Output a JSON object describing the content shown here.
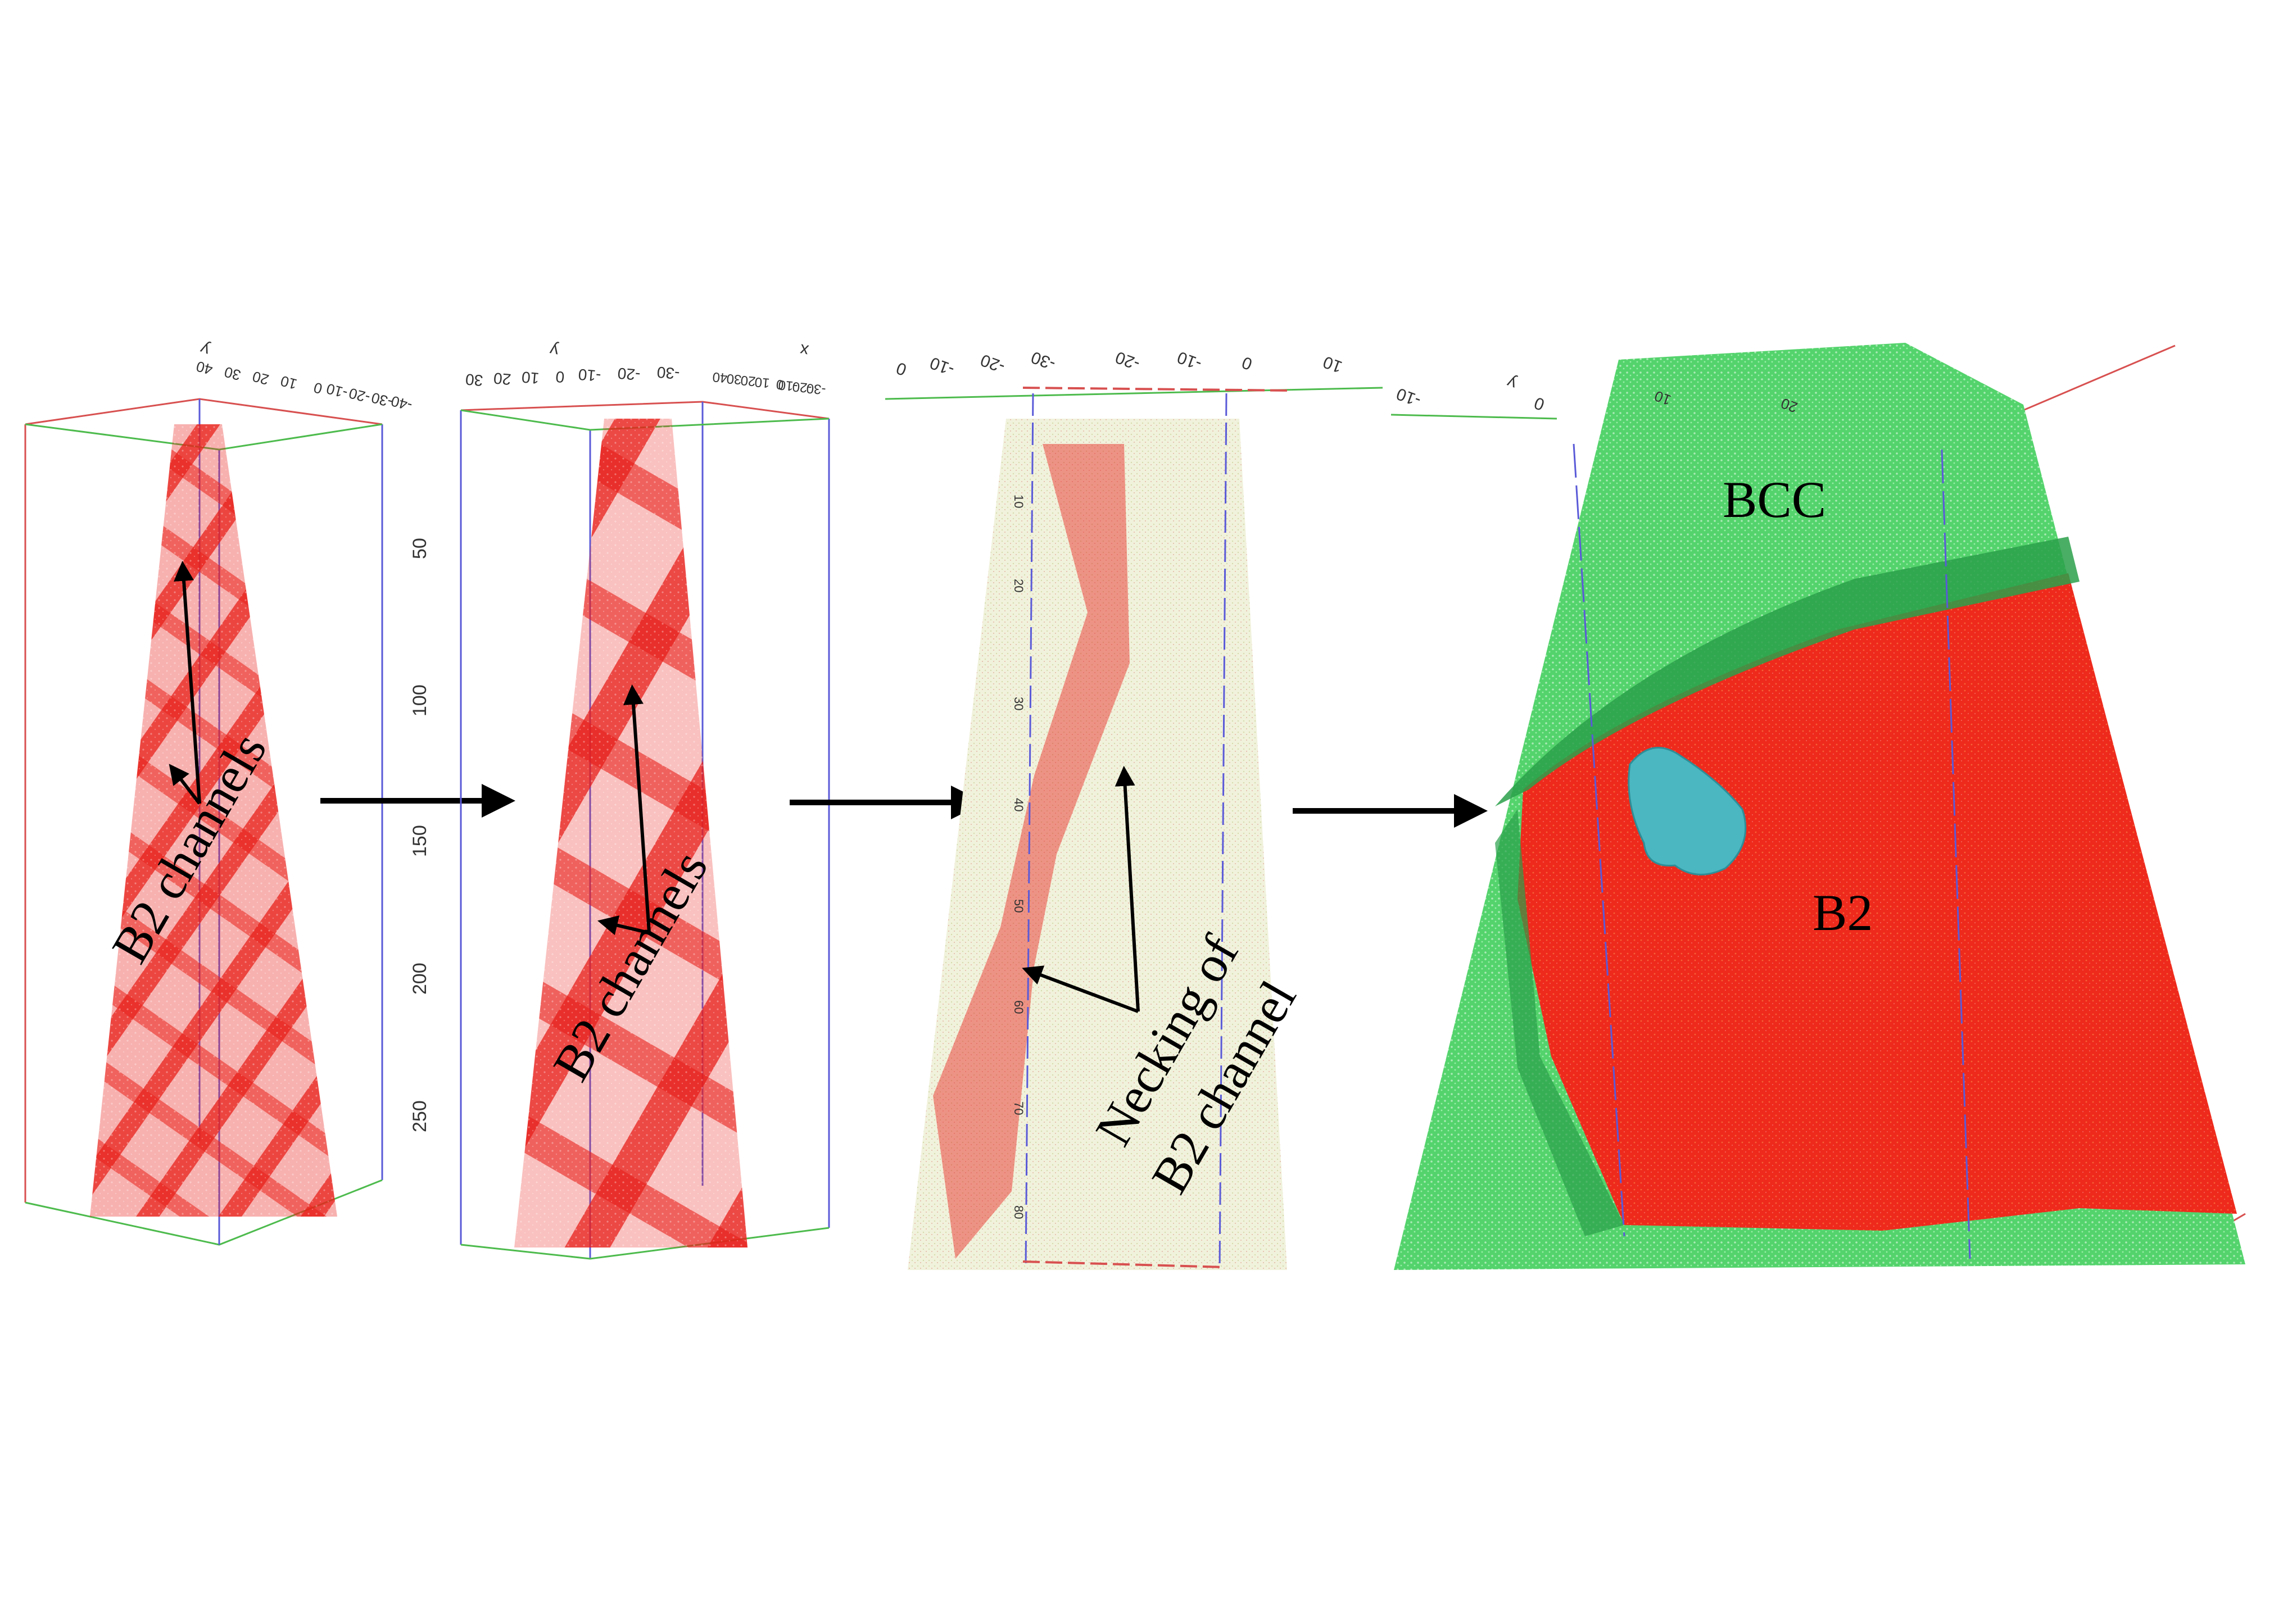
{
  "figure": {
    "panel1": {
      "label": "B2 channels",
      "axis_var": "y",
      "top_ticks": [
        "40",
        "30",
        "20",
        "10",
        "0",
        "-10",
        "-20",
        "-30",
        "-40"
      ],
      "side_ticks": [
        "50",
        "100",
        "150",
        "200",
        "250"
      ]
    },
    "panel2": {
      "label": "B2 channels",
      "axis_var_y": "y",
      "axis_var_x": "x",
      "top_ticks_y": [
        "30",
        "20",
        "10",
        "0",
        "-10",
        "-20",
        "-30"
      ],
      "top_ticks_x": [
        "40",
        "30",
        "20",
        "10",
        "0",
        "-10",
        "-20",
        "-30"
      ]
    },
    "panel3": {
      "label_line1": "Necking of",
      "label_line2": "B2 channel",
      "top_ticks": [
        "0",
        "-10",
        "-20",
        "-30",
        "-20",
        "-10",
        "0",
        "10"
      ],
      "inner_ticks": [
        "10",
        "20",
        "30",
        "40",
        "50",
        "60",
        "70",
        "80"
      ]
    },
    "panel4": {
      "phase_top": "BCC",
      "phase_bottom": "B2",
      "axis_var": "y",
      "top_ticks": [
        "-10",
        "0",
        "10",
        "20"
      ]
    },
    "colors": {
      "b2": "#e8201a",
      "bcc": "#3ed05a",
      "matrix": "#e6e8c8",
      "interface": "#2aa04a",
      "precipitate": "#4bb7c0",
      "box_red": "#d85050",
      "box_green": "#4dbb4d",
      "box_blue": "#5a5ad8",
      "arrow": "#000000"
    }
  }
}
